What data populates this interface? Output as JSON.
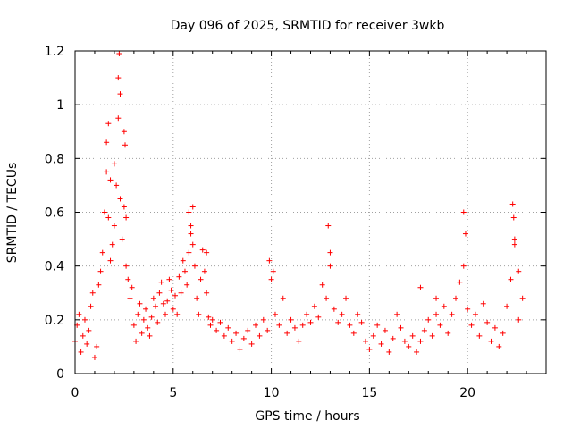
{
  "chart_data": {
    "type": "scatter",
    "title": "Day 096 of 2025, SRMTID for receiver 3wkb",
    "xlabel": "GPS time / hours",
    "ylabel": "SRMTID / TECUs",
    "xlim": [
      0,
      24
    ],
    "ylim": [
      0,
      1.2
    ],
    "xticks": [
      0,
      5,
      10,
      15,
      20
    ],
    "xtick_labels": [
      "0",
      "5",
      "10",
      "15",
      "20"
    ],
    "yticks": [
      0,
      0.2,
      0.4,
      0.6,
      0.8,
      1.0,
      1.2
    ],
    "ytick_labels": [
      "0",
      "0.2",
      "0.4",
      "0.6",
      "0.8",
      "1",
      "1.2"
    ],
    "grid": true,
    "marker": "+",
    "color": "#ff0000",
    "series": [
      {
        "name": "SRMTID",
        "x": [
          0.0,
          0.1,
          0.2,
          0.3,
          0.4,
          0.5,
          0.6,
          0.7,
          0.8,
          0.9,
          1.0,
          1.1,
          1.2,
          1.3,
          1.4,
          1.5,
          1.6,
          1.7,
          1.8,
          1.9,
          2.0,
          2.1,
          2.2,
          2.3,
          2.4,
          2.5,
          2.6,
          2.7,
          2.8,
          2.9,
          3.0,
          3.1,
          3.2,
          3.3,
          3.4,
          3.5,
          3.6,
          3.7,
          3.8,
          3.9,
          4.0,
          4.1,
          4.2,
          4.3,
          4.4,
          4.5,
          4.6,
          4.7,
          4.8,
          4.9,
          5.0,
          5.1,
          5.2,
          5.3,
          5.4,
          5.5,
          5.6,
          5.7,
          5.8,
          5.9,
          6.0,
          6.1,
          6.2,
          6.3,
          6.4,
          6.5,
          6.6,
          6.7,
          6.8,
          6.9,
          7.0,
          7.2,
          7.4,
          7.6,
          7.8,
          8.0,
          8.2,
          8.4,
          8.6,
          8.8,
          9.0,
          9.2,
          9.4,
          9.6,
          9.8,
          10.0,
          10.2,
          10.4,
          10.6,
          10.8,
          11.0,
          11.2,
          11.4,
          11.6,
          11.8,
          12.0,
          12.2,
          12.4,
          12.6,
          12.8,
          13.0,
          13.2,
          13.4,
          13.6,
          13.8,
          14.0,
          14.2,
          14.4,
          14.6,
          14.8,
          15.0,
          15.2,
          15.4,
          15.6,
          15.8,
          16.0,
          16.2,
          16.4,
          16.6,
          16.8,
          17.0,
          17.2,
          17.4,
          17.6,
          17.8,
          18.0,
          18.2,
          18.4,
          18.6,
          18.8,
          19.0,
          19.2,
          19.4,
          19.6,
          19.8,
          20.0,
          20.2,
          20.4,
          20.6,
          20.8,
          21.0,
          21.2,
          21.4,
          21.6,
          21.8,
          22.0,
          22.2,
          22.4,
          22.6,
          22.8,
          1.6,
          1.7,
          2.2,
          2.25,
          2.3,
          2.5,
          2.55,
          1.8,
          2.0,
          2.6,
          5.8,
          5.9,
          6.0,
          6.7,
          9.9,
          10.1,
          12.9,
          13.0,
          19.8,
          19.9,
          22.3,
          22.35,
          22.4,
          22.6,
          17.6,
          18.4
        ],
        "y": [
          0.12,
          0.18,
          0.22,
          0.08,
          0.14,
          0.2,
          0.11,
          0.16,
          0.25,
          0.3,
          0.06,
          0.1,
          0.33,
          0.38,
          0.45,
          0.6,
          0.75,
          0.58,
          0.42,
          0.48,
          0.55,
          0.7,
          0.95,
          0.65,
          0.5,
          0.62,
          0.4,
          0.35,
          0.28,
          0.32,
          0.18,
          0.12,
          0.22,
          0.26,
          0.15,
          0.2,
          0.24,
          0.17,
          0.14,
          0.21,
          0.28,
          0.25,
          0.19,
          0.3,
          0.34,
          0.26,
          0.22,
          0.27,
          0.35,
          0.31,
          0.24,
          0.29,
          0.22,
          0.36,
          0.3,
          0.42,
          0.38,
          0.33,
          0.45,
          0.52,
          0.48,
          0.4,
          0.28,
          0.22,
          0.35,
          0.46,
          0.38,
          0.3,
          0.21,
          0.18,
          0.2,
          0.16,
          0.19,
          0.14,
          0.17,
          0.12,
          0.15,
          0.09,
          0.13,
          0.16,
          0.11,
          0.18,
          0.14,
          0.2,
          0.16,
          0.35,
          0.22,
          0.18,
          0.28,
          0.15,
          0.2,
          0.17,
          0.12,
          0.18,
          0.22,
          0.19,
          0.25,
          0.21,
          0.33,
          0.28,
          0.4,
          0.24,
          0.19,
          0.22,
          0.28,
          0.18,
          0.15,
          0.22,
          0.19,
          0.12,
          0.09,
          0.14,
          0.18,
          0.11,
          0.16,
          0.08,
          0.13,
          0.22,
          0.17,
          0.12,
          0.1,
          0.14,
          0.08,
          0.12,
          0.16,
          0.2,
          0.14,
          0.22,
          0.18,
          0.25,
          0.15,
          0.22,
          0.28,
          0.34,
          0.4,
          0.24,
          0.18,
          0.22,
          0.14,
          0.26,
          0.19,
          0.12,
          0.17,
          0.1,
          0.15,
          0.25,
          0.35,
          0.48,
          0.2,
          0.28,
          0.86,
          0.93,
          1.1,
          1.19,
          1.04,
          0.9,
          0.85,
          0.72,
          0.78,
          0.58,
          0.6,
          0.55,
          0.62,
          0.45,
          0.42,
          0.38,
          0.55,
          0.45,
          0.6,
          0.52,
          0.63,
          0.58,
          0.5,
          0.38,
          0.32,
          0.28
        ]
      }
    ]
  }
}
